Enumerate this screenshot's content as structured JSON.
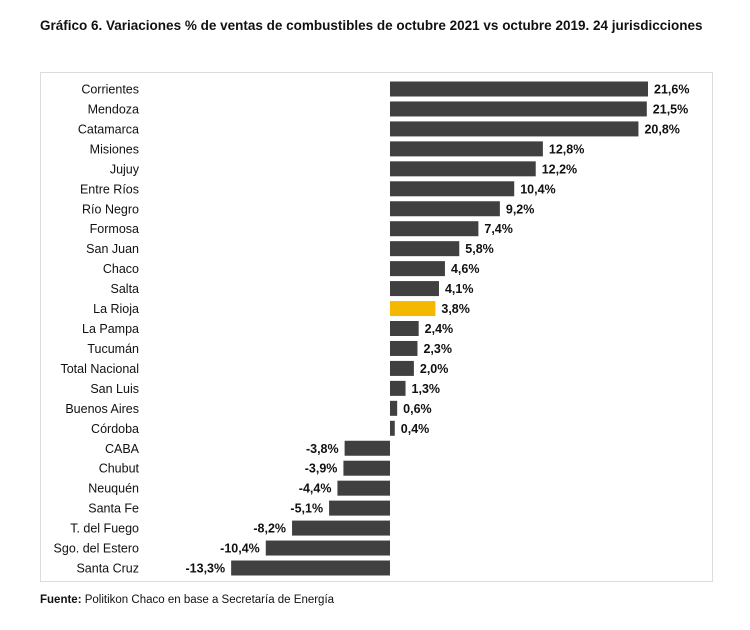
{
  "chart_data": {
    "type": "bar",
    "orientation": "horizontal",
    "title": "Gráfico 6. Variaciones % de ventas de combustibles de octubre 2021 vs octubre 2019. 24 jurisdicciones",
    "categories": [
      "Corrientes",
      "Mendoza",
      "Catamarca",
      "Misiones",
      "Jujuy",
      "Entre Ríos",
      "Río Negro",
      "Formosa",
      "San Juan",
      "Chaco",
      "Salta",
      "La Rioja",
      "La Pampa",
      "Tucumán",
      "Total Nacional",
      "San Luis",
      "Buenos Aires",
      "Córdoba",
      "CABA",
      "Chubut",
      "Neuquén",
      "Santa Fe",
      "T. del Fuego",
      "Sgo. del Estero",
      "Santa Cruz"
    ],
    "values": [
      21.6,
      21.5,
      20.8,
      12.8,
      12.2,
      10.4,
      9.2,
      7.4,
      5.8,
      4.6,
      4.1,
      3.8,
      2.4,
      2.3,
      2.0,
      1.3,
      0.6,
      0.4,
      -3.8,
      -3.9,
      -4.4,
      -5.1,
      -8.2,
      -10.4,
      -13.3
    ],
    "value_labels": [
      "21,6%",
      "21,5%",
      "20,8%",
      "12,8%",
      "12,2%",
      "10,4%",
      "9,2%",
      "7,4%",
      "5,8%",
      "4,6%",
      "4,1%",
      "3,8%",
      "2,4%",
      "2,3%",
      "2,0%",
      "1,3%",
      "0,6%",
      "0,4%",
      "-3,8%",
      "-3,9%",
      "-4,4%",
      "-5,1%",
      "-8,2%",
      "-10,4%",
      "-13,3%"
    ],
    "highlight": "La Rioja",
    "colors": {
      "bar": "#404040",
      "highlight": "#f5b800"
    },
    "xlim": [
      -13.3,
      21.6
    ],
    "grid": false,
    "legend": "none"
  },
  "source": {
    "label": "Fuente:",
    "text": " Politikon Chaco en base a Secretaría de Energía"
  }
}
